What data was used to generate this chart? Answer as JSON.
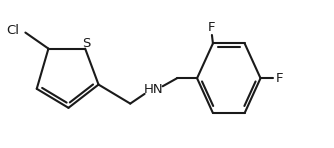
{
  "background_color": "#ffffff",
  "line_color": "#1a1a1a",
  "line_width": 1.5,
  "font_size_labels": 9.5,
  "atoms": {
    "S_label": "S",
    "Cl_label": "Cl",
    "NH_label": "HN",
    "F1_label": "F",
    "F2_label": "F"
  },
  "xlim": [
    0,
    10
  ],
  "ylim": [
    0,
    3.5
  ]
}
